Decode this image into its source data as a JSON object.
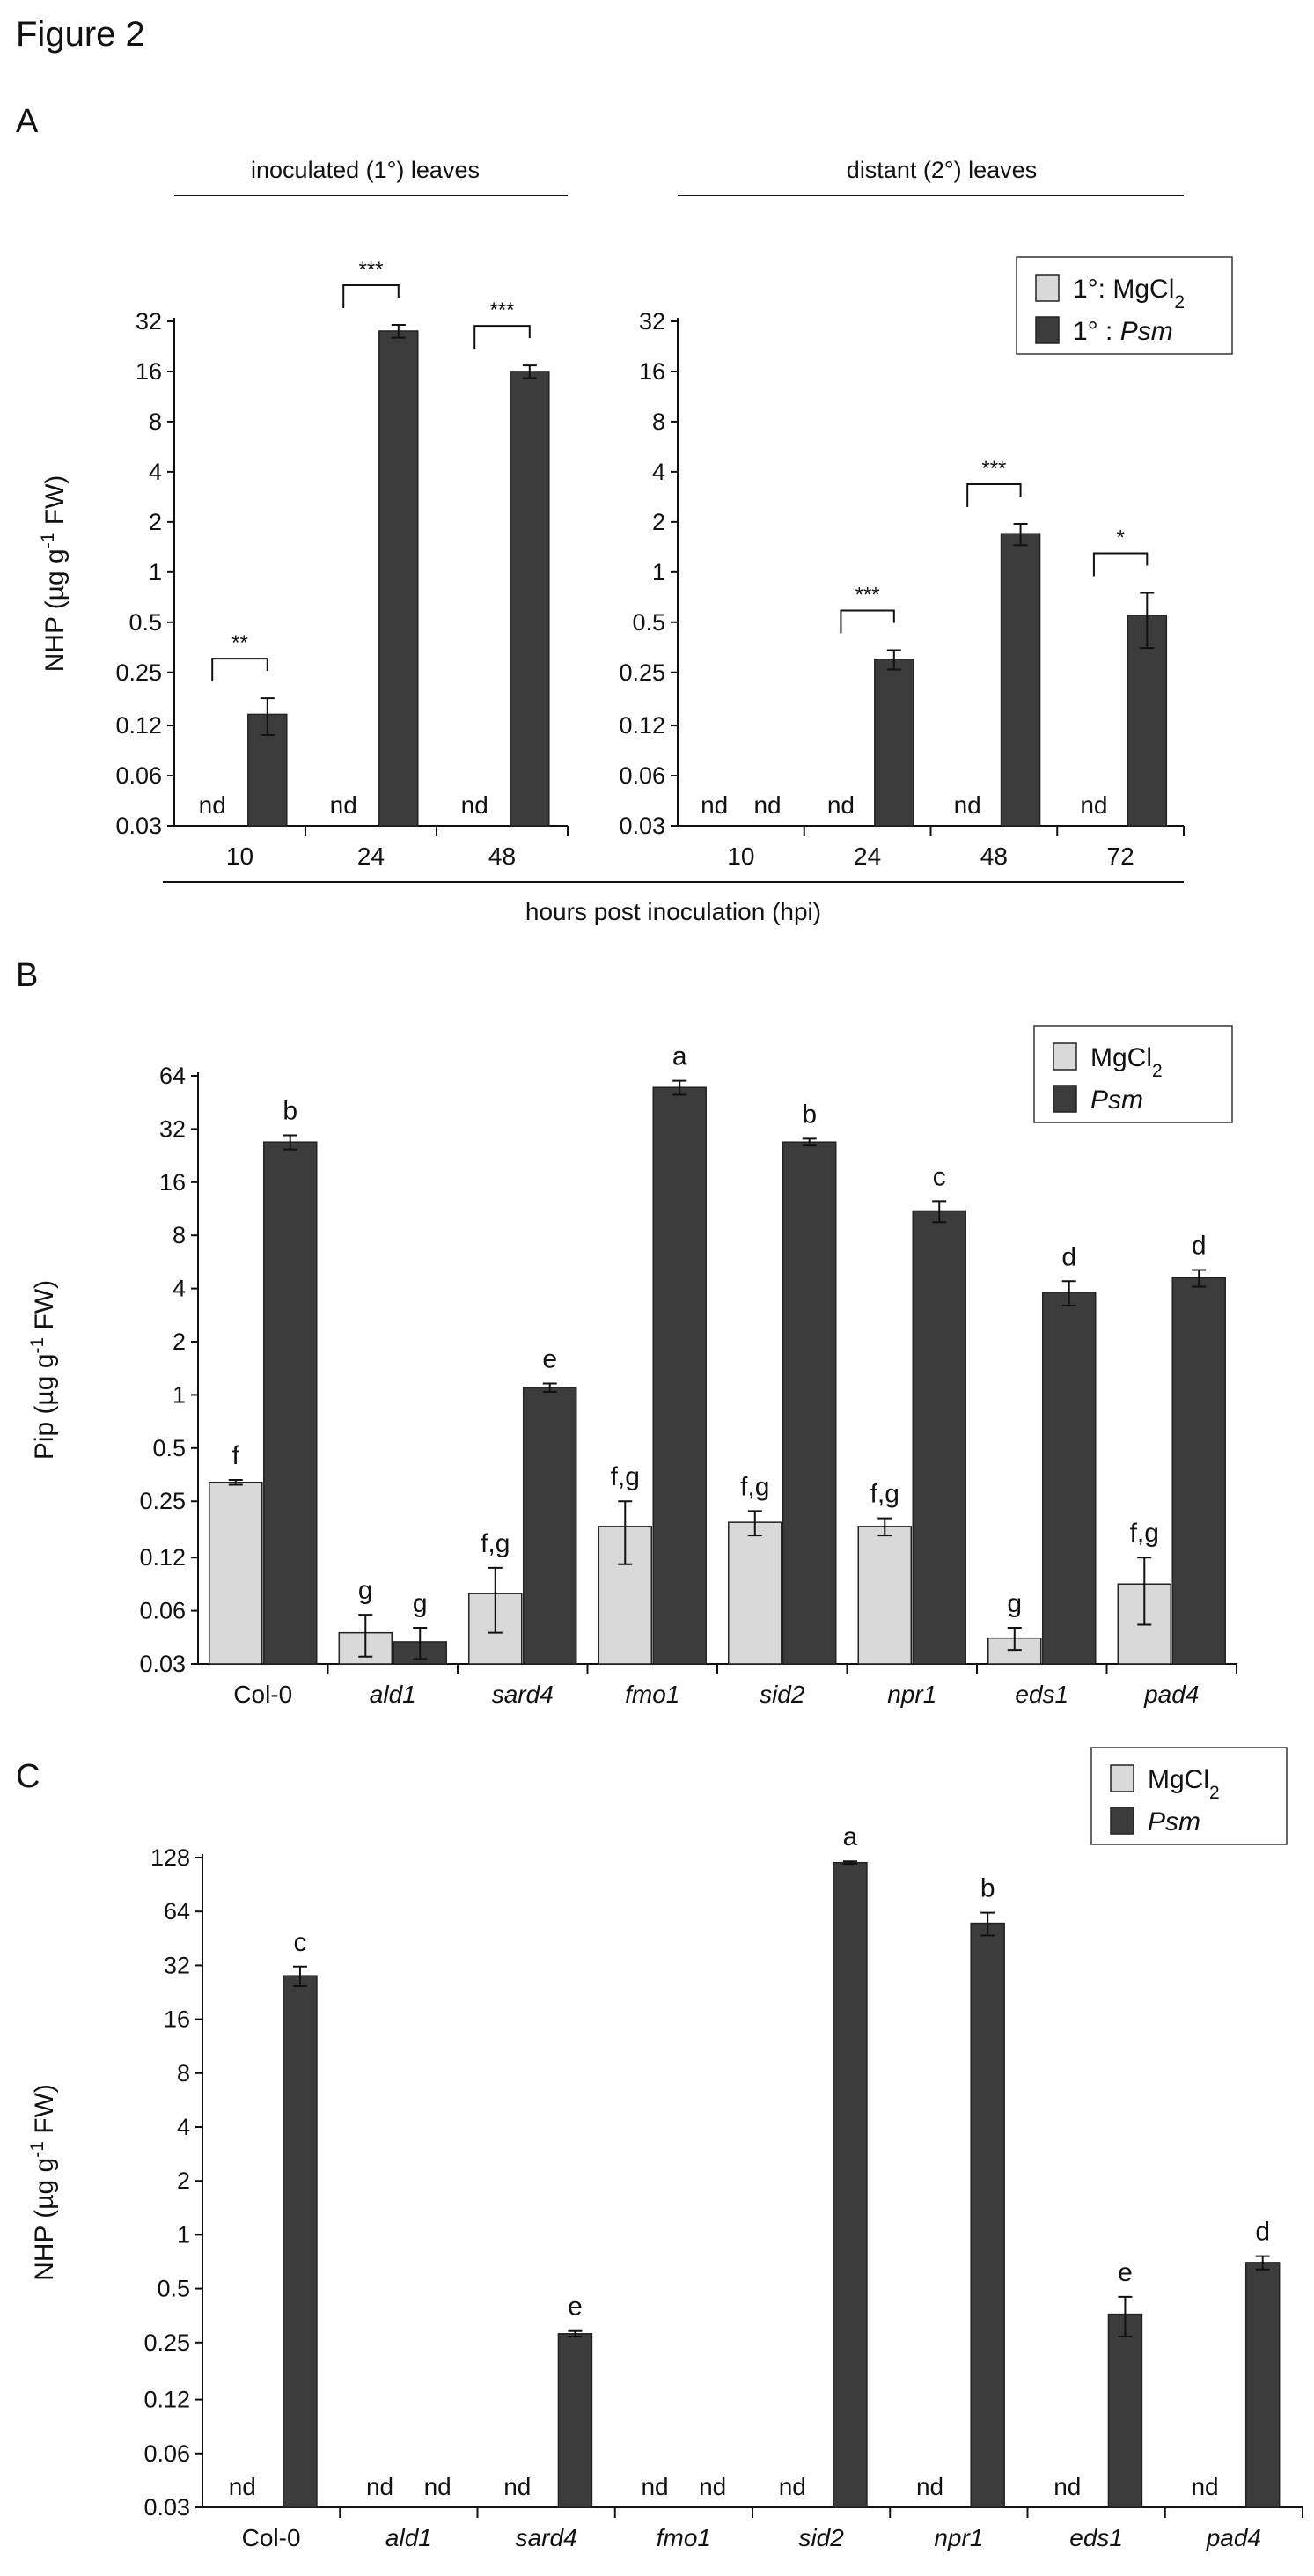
{
  "figure_title": "Figure 2",
  "colors": {
    "light_bar": "#d9d9d9",
    "dark_bar": "#3c3c3c",
    "axis": "#111111"
  },
  "chart_data": [
    {
      "id": "A-left",
      "panel": "A",
      "type": "bar",
      "y_scale": "log2",
      "ylim": [
        0.03,
        32
      ],
      "ylabel": "NHP (µg g⁻¹ FW)",
      "group_label": "inoculated (1°) leaves",
      "shared_xlabel": "hours post inoculation (hpi)",
      "yticks": [
        "0.03",
        "0.06",
        "0.12",
        "0.25",
        "0.5",
        "1",
        "2",
        "4",
        "8",
        "16",
        "32"
      ],
      "categories": [
        "10",
        "24",
        "48"
      ],
      "series": [
        {
          "name": "1°: MgCl₂",
          "values": [
            null,
            null,
            null
          ],
          "err": [
            0,
            0,
            0
          ]
        },
        {
          "name": "1° : Psm",
          "values": [
            0.14,
            28,
            16
          ],
          "err": [
            0.035,
            2.5,
            1.4
          ]
        }
      ],
      "point_labels": {
        "1°: MgCl₂": [
          "nd",
          "nd",
          "nd"
        ]
      },
      "significance": [
        "**",
        "***",
        "***"
      ]
    },
    {
      "id": "A-right",
      "panel": "A",
      "type": "bar",
      "y_scale": "log2",
      "ylim": [
        0.03,
        32
      ],
      "group_label": "distant (2°) leaves",
      "yticks": [
        "0.03",
        "0.06",
        "0.12",
        "0.25",
        "0.5",
        "1",
        "2",
        "4",
        "8",
        "16",
        "32"
      ],
      "categories": [
        "10",
        "24",
        "48",
        "72"
      ],
      "series": [
        {
          "name": "1°: MgCl₂",
          "values": [
            null,
            null,
            null,
            null
          ],
          "err": [
            0,
            0,
            0,
            0
          ]
        },
        {
          "name": "1° : Psm",
          "values": [
            null,
            0.3,
            1.7,
            0.55
          ],
          "err": [
            0,
            0.04,
            0.25,
            0.2
          ]
        }
      ],
      "point_labels": {
        "1°: MgCl₂": [
          "nd",
          "nd",
          "nd",
          "nd"
        ],
        "1° : Psm": [
          "nd",
          null,
          null,
          null
        ]
      },
      "significance": [
        null,
        "***",
        "***",
        "*"
      ],
      "legend": [
        "1°: MgCl₂",
        "1° : Psm"
      ]
    },
    {
      "id": "B",
      "panel": "B",
      "type": "bar",
      "y_scale": "log2",
      "ylim": [
        0.03,
        64
      ],
      "ylabel": "Pip (µg g⁻¹ FW)",
      "yticks": [
        "0.03",
        "0.06",
        "0.12",
        "0.25",
        "0.5",
        "1",
        "2",
        "4",
        "8",
        "16",
        "32",
        "64"
      ],
      "categories": [
        "Col-0",
        "ald1",
        "sard4",
        "fmo1",
        "sid2",
        "npr1",
        "eds1",
        "pad4"
      ],
      "series": [
        {
          "name": "MgCl₂",
          "values": [
            0.32,
            0.045,
            0.075,
            0.18,
            0.19,
            0.18,
            0.042,
            0.085
          ],
          "err": [
            0.01,
            0.012,
            0.03,
            0.07,
            0.03,
            0.02,
            0.006,
            0.035
          ],
          "letters": [
            "f",
            "g",
            "f,g",
            "f,g",
            "f,g",
            "f,g",
            "g",
            "f,g"
          ]
        },
        {
          "name": "Psm",
          "values": [
            27,
            0.04,
            1.1,
            55,
            27,
            11,
            3.8,
            4.6
          ],
          "err": [
            2.5,
            0.008,
            0.06,
            5,
            1.2,
            1.5,
            0.6,
            0.5
          ],
          "letters": [
            "b",
            "g",
            "e",
            "a",
            "b",
            "c",
            "d",
            "d"
          ]
        }
      ],
      "legend": [
        "MgCl₂",
        "Psm"
      ]
    },
    {
      "id": "C",
      "panel": "C",
      "type": "bar",
      "y_scale": "log2",
      "ylim": [
        0.03,
        128
      ],
      "ylabel": "NHP (µg g⁻¹ FW)",
      "yticks": [
        "0.03",
        "0.06",
        "0.12",
        "0.25",
        "0.5",
        "1",
        "2",
        "4",
        "8",
        "16",
        "32",
        "64",
        "128"
      ],
      "categories": [
        "Col-0",
        "ald1",
        "sard4",
        "fmo1",
        "sid2",
        "npr1",
        "eds1",
        "pad4"
      ],
      "series": [
        {
          "name": "MgCl₂",
          "values": [
            null,
            null,
            null,
            null,
            null,
            null,
            null,
            null
          ],
          "err": [
            0,
            0,
            0,
            0,
            0,
            0,
            0,
            0
          ]
        },
        {
          "name": "Psm",
          "values": [
            28,
            null,
            0.28,
            null,
            120,
            55,
            0.36,
            0.7
          ],
          "err": [
            3.5,
            0,
            0.01,
            0,
            2,
            8,
            0.09,
            0.06
          ],
          "letters": [
            "c",
            null,
            "e",
            null,
            "a",
            "b",
            "e",
            "d"
          ]
        }
      ],
      "point_labels": {
        "MgCl₂": [
          "nd",
          "nd",
          "nd",
          "nd",
          "nd",
          "nd",
          "nd",
          "nd"
        ],
        "Psm": [
          null,
          "nd",
          null,
          "nd",
          null,
          null,
          null,
          null
        ]
      },
      "legend": [
        "MgCl₂",
        "Psm"
      ]
    }
  ]
}
